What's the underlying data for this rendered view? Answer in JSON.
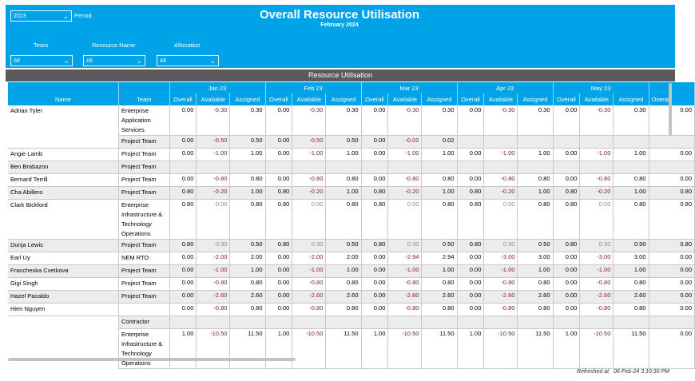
{
  "header": {
    "title": "Overall Resource Utilisation",
    "subtitle": "February 2024",
    "period": {
      "value": "2023",
      "label": "Period"
    },
    "filters": [
      {
        "label": "Team",
        "value": "All"
      },
      {
        "label": "Resource Name",
        "value": "All"
      },
      {
        "label": "Allocation",
        "value": "All"
      }
    ]
  },
  "section_title": "Resource Utilisation",
  "table": {
    "months": [
      "Jan 23",
      "Feb 23",
      "Mar 23",
      "Apr 23",
      "May 23"
    ],
    "columns": [
      "Name",
      "Team",
      "Overall",
      "Available",
      "Assigned"
    ],
    "overflow_column": "Overall",
    "rows": [
      {
        "name": "Adrian Tyler",
        "team": "Enterprise Application Services",
        "v": [
          "0.00",
          "-0.30",
          "0.30",
          "0.00",
          "-0.30",
          "0.30",
          "0.00",
          "-0.30",
          "0.30",
          "0.00",
          "-0.30",
          "0.30",
          "0.00",
          "-0.30",
          "0.30",
          "0.00"
        ]
      },
      {
        "name": "",
        "team": "Project Team",
        "grey": true,
        "v": [
          "0.00",
          "-0.50",
          "0.50",
          "0.00",
          "-0.50",
          "0.50",
          "0.00",
          "-0.02",
          "0.02",
          "",
          "",
          "",
          "",
          "",
          "",
          ""
        ]
      },
      {
        "name": "Angie Lamb",
        "team": "Project Team",
        "v": [
          "0.00",
          "-1.00",
          "1.00",
          "0.00",
          "-1.00",
          "1.00",
          "0.00",
          "-1.00",
          "1.00",
          "0.00",
          "-1.00",
          "1.00",
          "0.00",
          "-1.00",
          "1.00",
          "0.00"
        ]
      },
      {
        "name": "Ben Brabazon",
        "team": "Project Team",
        "grey": true,
        "v": [
          "",
          "",
          "",
          "",
          "",
          "",
          "",
          "",
          "",
          "",
          "",
          "",
          "",
          "",
          "",
          ""
        ]
      },
      {
        "name": "Bernard Terrill",
        "team": "Project Team",
        "v": [
          "0.00",
          "-0.80",
          "0.80",
          "0.00",
          "-0.80",
          "0.80",
          "0.00",
          "-0.80",
          "0.80",
          "0.00",
          "-0.80",
          "0.80",
          "0.00",
          "-0.80",
          "0.80",
          "0.00"
        ]
      },
      {
        "name": "Cha Abillero",
        "team": "Project Team",
        "grey": true,
        "v": [
          "0.80",
          "-0.20",
          "1.00",
          "0.80",
          "-0.20",
          "1.00",
          "0.80",
          "-0.20",
          "1.00",
          "0.80",
          "-0.20",
          "1.00",
          "0.80",
          "-0.20",
          "1.00",
          "0.80"
        ]
      },
      {
        "name": "Clark Bickford",
        "team": "Enterprise Infrastructure & Technology Operations",
        "v": [
          "0.80",
          "0.00",
          "0.80",
          "0.80",
          "0.00",
          "0.80",
          "0.80",
          "0.00",
          "0.80",
          "0.80",
          "0.00",
          "0.80",
          "0.80",
          "0.00",
          "0.80",
          "0.80"
        ]
      },
      {
        "name": "Dunja Lewis",
        "team": "Project Team",
        "grey": true,
        "v": [
          "0.80",
          "0.30",
          "0.50",
          "0.80",
          "0.30",
          "0.50",
          "0.80",
          "0.30",
          "0.50",
          "0.80",
          "0.30",
          "0.50",
          "0.80",
          "0.30",
          "0.50",
          "0.80"
        ]
      },
      {
        "name": "Earl Uy",
        "team": "NEM RTO",
        "v": [
          "0.00",
          "-2.00",
          "2.00",
          "0.00",
          "-2.00",
          "2.00",
          "0.00",
          "-2.94",
          "2.94",
          "0.00",
          "-3.00",
          "3.00",
          "0.00",
          "-3.00",
          "3.00",
          "0.00"
        ]
      },
      {
        "name": "Francheska Cvetkova",
        "team": "Project Team",
        "grey": true,
        "v": [
          "0.00",
          "-1.00",
          "1.00",
          "0.00",
          "-1.00",
          "1.00",
          "0.00",
          "-1.00",
          "1.00",
          "0.00",
          "-1.00",
          "1.00",
          "0.00",
          "-1.00",
          "1.00",
          "0.00"
        ]
      },
      {
        "name": "Gigi Singh",
        "team": "Project Team",
        "v": [
          "0.00",
          "-0.80",
          "0.80",
          "0.00",
          "-0.80",
          "0.80",
          "0.00",
          "-0.80",
          "0.80",
          "0.00",
          "-0.80",
          "0.80",
          "0.00",
          "-0.80",
          "0.80",
          "0.00"
        ]
      },
      {
        "name": "Hazel Pacaldo",
        "team": "Project Team",
        "grey": true,
        "v": [
          "0.00",
          "-2.60",
          "2.60",
          "0.00",
          "-2.60",
          "2.60",
          "0.00",
          "-2.60",
          "2.60",
          "0.00",
          "-2.60",
          "2.60",
          "0.00",
          "-2.60",
          "2.60",
          "0.00"
        ]
      },
      {
        "name": "Hien Nguyen",
        "team": "",
        "v": [
          "0.00",
          "-0.80",
          "0.80",
          "0.00",
          "-0.80",
          "0.80",
          "0.00",
          "-0.80",
          "0.80",
          "0.00",
          "-0.80",
          "0.80",
          "0.00",
          "-0.80",
          "0.80",
          "0.00"
        ]
      },
      {
        "name": "",
        "team": "Contractor",
        "grey": true,
        "cont": true,
        "v": [
          "",
          "",
          "",
          "",
          "",
          "",
          "",
          "",
          "",
          "",
          "",
          "",
          "",
          "",
          "",
          ""
        ]
      },
      {
        "name": "",
        "team": "Enterprise Infrastructure & Technology Operations",
        "cont": true,
        "v": [
          "1.00",
          "-10.50",
          "11.50",
          "1.00",
          "-10.50",
          "11.50",
          "1.00",
          "-10.50",
          "11.50",
          "1.00",
          "-10.50",
          "11.50",
          "1.00",
          "-10.50",
          "11.50",
          "0.00"
        ]
      }
    ]
  },
  "footer": {
    "refreshed_label": "Refreshed at",
    "refreshed_value": "06-Feb-24 3:10:30 PM"
  }
}
